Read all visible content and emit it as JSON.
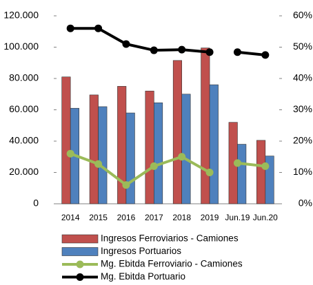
{
  "chart_data": {
    "type": "bar",
    "categories": [
      "2014",
      "2015",
      "2016",
      "2017",
      "2018",
      "2019",
      "Jun.19",
      "Jun.20"
    ],
    "series": [
      {
        "name": "Ingresos Ferroviarios - Camiones",
        "color": "#c0504d",
        "values": [
          81000,
          69500,
          75000,
          72000,
          91500,
          99500,
          52000,
          40500
        ]
      },
      {
        "name": "Ingresos Portuarios",
        "color": "#4f81bd",
        "values": [
          61000,
          62000,
          58000,
          64500,
          70000,
          76000,
          38000,
          30500
        ]
      },
      {
        "name": "Mg. Ebitda Ferroviario - Camiones",
        "color": "#9bbb59",
        "type": "line",
        "axis": "y2",
        "values": [
          16,
          12.7,
          6,
          12,
          15,
          10,
          13,
          12
        ]
      },
      {
        "name": "Mg. Ebitda Portuario",
        "color": "#000000",
        "type": "line",
        "axis": "y2",
        "values": [
          56,
          56,
          51,
          49,
          49.2,
          48.4,
          48.4,
          47.5
        ]
      }
    ],
    "line_breaks": [
      6
    ],
    "ylim": [
      0,
      120000
    ],
    "yticks": [
      0,
      {
        "value": 20000,
        "label": "20.000"
      },
      {
        "value": 40000,
        "label": "40.000"
      },
      {
        "value": 60000,
        "label": "60.000"
      },
      {
        "value": 80000,
        "label": "80.000"
      },
      {
        "value": 100000,
        "label": "100.000"
      },
      {
        "value": 120000,
        "label": "120.000"
      }
    ],
    "y2lim": [
      0,
      60
    ],
    "y2ticks": [
      {
        "value": 0,
        "label": "0%"
      },
      {
        "value": 10,
        "label": "10%"
      },
      {
        "value": 20,
        "label": "20%"
      },
      {
        "value": 30,
        "label": "30%"
      },
      {
        "value": 40,
        "label": "40%"
      },
      {
        "value": 50,
        "label": "50%"
      },
      {
        "value": 60,
        "label": "60%"
      }
    ],
    "grid": false
  }
}
